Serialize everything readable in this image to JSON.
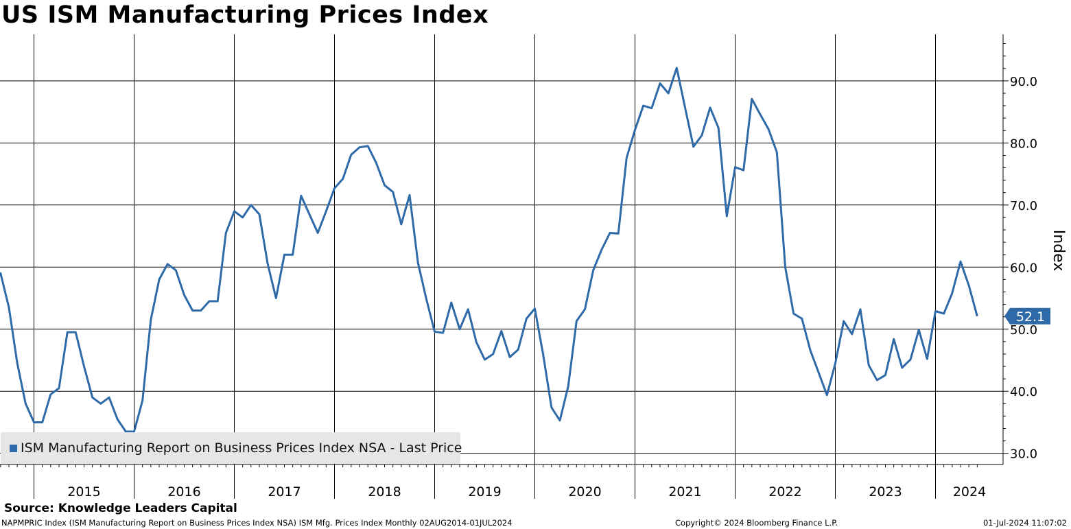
{
  "title": "US ISM Manufacturing Prices Index",
  "source": "Source: Knowledge Leaders Capital",
  "footer": {
    "description": "NAPMPRIC Index (ISM Manufacturing Report on Business Prices Index NSA) ISM Mfg. Prices Index  Monthly 02AUG2014-01JUL2024",
    "copyright": "Copyright© 2024 Bloomberg Finance L.P.",
    "timestamp": "01-Jul-2024 11:07:02"
  },
  "colors": {
    "line": "#2f6aa8",
    "grid": "#000000",
    "legend_bg": "#e6e6e6"
  },
  "chart_data": {
    "type": "line",
    "title": "US ISM Manufacturing Prices Index",
    "ylabel": "Index",
    "ylim": [
      28.2,
      97.5
    ],
    "yticks": [
      30,
      40,
      50,
      60,
      70,
      80,
      90
    ],
    "ytick_labels": [
      "30.0",
      "40.0",
      "50.0",
      "60.0",
      "70.0",
      "80.0",
      "90.0"
    ],
    "x_year_labels": [
      "2015",
      "2016",
      "2017",
      "2018",
      "2019",
      "2020",
      "2021",
      "2022",
      "2023",
      "2024"
    ],
    "grid": true,
    "legend_position": "bottom-left",
    "last_value_label": "52.1",
    "series": [
      {
        "name": "ISM Manufacturing Report on Business Prices Index NSA - Last Price",
        "x": [
          "2014-08",
          "2014-09",
          "2014-10",
          "2014-11",
          "2014-12",
          "2015-01",
          "2015-02",
          "2015-03",
          "2015-04",
          "2015-05",
          "2015-06",
          "2015-07",
          "2015-08",
          "2015-09",
          "2015-10",
          "2015-11",
          "2015-12",
          "2016-01",
          "2016-02",
          "2016-03",
          "2016-04",
          "2016-05",
          "2016-06",
          "2016-07",
          "2016-08",
          "2016-09",
          "2016-10",
          "2016-11",
          "2016-12",
          "2017-01",
          "2017-02",
          "2017-03",
          "2017-04",
          "2017-05",
          "2017-06",
          "2017-07",
          "2017-08",
          "2017-09",
          "2017-10",
          "2017-11",
          "2017-12",
          "2018-01",
          "2018-02",
          "2018-03",
          "2018-04",
          "2018-05",
          "2018-06",
          "2018-07",
          "2018-08",
          "2018-09",
          "2018-10",
          "2018-11",
          "2018-12",
          "2019-01",
          "2019-02",
          "2019-03",
          "2019-04",
          "2019-05",
          "2019-06",
          "2019-07",
          "2019-08",
          "2019-09",
          "2019-10",
          "2019-11",
          "2019-12",
          "2020-01",
          "2020-02",
          "2020-03",
          "2020-04",
          "2020-05",
          "2020-06",
          "2020-07",
          "2020-08",
          "2020-09",
          "2020-10",
          "2020-11",
          "2020-12",
          "2021-01",
          "2021-02",
          "2021-03",
          "2021-04",
          "2021-05",
          "2021-06",
          "2021-07",
          "2021-08",
          "2021-09",
          "2021-10",
          "2021-11",
          "2021-12",
          "2022-01",
          "2022-02",
          "2022-03",
          "2022-04",
          "2022-05",
          "2022-06",
          "2022-07",
          "2022-08",
          "2022-09",
          "2022-10",
          "2022-11",
          "2022-12",
          "2023-01",
          "2023-02",
          "2023-03",
          "2023-04",
          "2023-05",
          "2023-06",
          "2023-07",
          "2023-08",
          "2023-09",
          "2023-10",
          "2023-11",
          "2023-12",
          "2024-01",
          "2024-02",
          "2024-03",
          "2024-04",
          "2024-05",
          "2024-06"
        ],
        "values": [
          57.0,
          59.0,
          53.5,
          44.5,
          38.0,
          35.0,
          35.0,
          39.5,
          40.5,
          49.5,
          49.5,
          44.0,
          39.0,
          38.0,
          39.0,
          35.5,
          33.5,
          33.5,
          38.5,
          51.5,
          58.0,
          60.5,
          59.5,
          55.5,
          53.0,
          53.0,
          54.5,
          54.5,
          65.5,
          69.0,
          68.0,
          70.0,
          68.5,
          60.5,
          55.0,
          62.0,
          62.0,
          71.5,
          68.5,
          65.5,
          69.0,
          72.7,
          74.2,
          78.1,
          79.3,
          79.5,
          76.8,
          73.2,
          72.1,
          66.9,
          71.6,
          60.7,
          54.9,
          49.6,
          49.4,
          54.3,
          50.0,
          53.2,
          47.9,
          45.1,
          46.0,
          49.7,
          45.5,
          46.7,
          51.7,
          53.3,
          45.9,
          37.4,
          35.3,
          40.8,
          51.3,
          53.2,
          59.5,
          62.8,
          65.5,
          65.4,
          77.6,
          82.1,
          86.0,
          85.6,
          89.6,
          88.0,
          92.1,
          85.7,
          79.4,
          81.2,
          85.7,
          82.4,
          68.2,
          76.1,
          75.6,
          87.1,
          84.6,
          82.2,
          78.5,
          60.0,
          52.5,
          51.7,
          46.6,
          43.0,
          39.4,
          44.5,
          51.3,
          49.2,
          53.2,
          44.2,
          41.8,
          42.6,
          48.4,
          43.8,
          45.1,
          49.9,
          45.2,
          52.9,
          52.5,
          55.8,
          60.9,
          57.0,
          52.1
        ]
      }
    ]
  }
}
